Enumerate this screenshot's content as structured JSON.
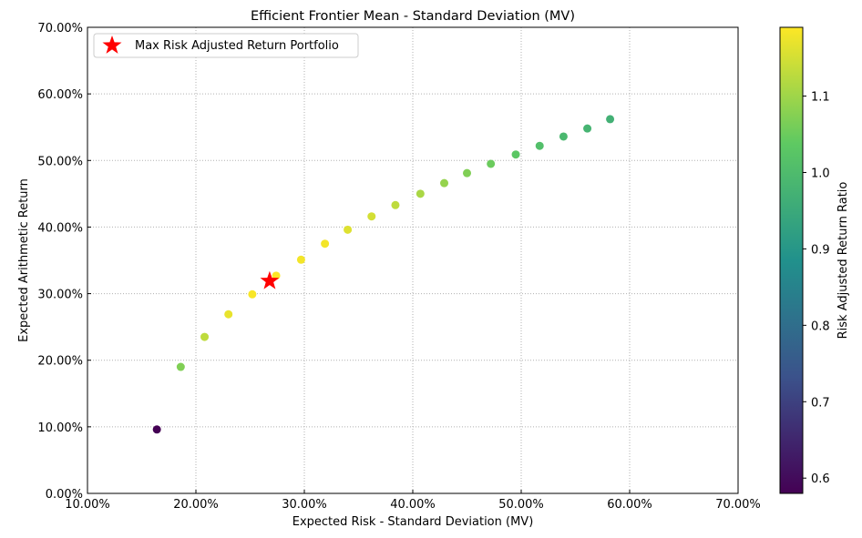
{
  "chart_data": {
    "type": "scatter",
    "title": "Efficient Frontier Mean - Standard Deviation (MV)",
    "xlabel": "Expected Risk - Standard Deviation (MV)",
    "ylabel": "Expected Arithmetic Return",
    "xlim": [
      10,
      70
    ],
    "ylim": [
      0,
      70
    ],
    "xticks": [
      "10.00%",
      "20.00%",
      "30.00%",
      "40.00%",
      "50.00%",
      "60.00%",
      "70.00%"
    ],
    "yticks": [
      "0.00%",
      "10.00%",
      "20.00%",
      "30.00%",
      "40.00%",
      "50.00%",
      "60.00%",
      "70.00%"
    ],
    "grid": true,
    "legend": {
      "placement": "top-left",
      "label": "Max Risk Adjusted Return Portfolio"
    },
    "points": [
      {
        "x": 16.4,
        "y": 9.6,
        "ratio": 0.58
      },
      {
        "x": 18.6,
        "y": 19.0,
        "ratio": 1.07
      },
      {
        "x": 20.8,
        "y": 23.5,
        "ratio": 1.13
      },
      {
        "x": 23.0,
        "y": 26.9,
        "ratio": 1.17
      },
      {
        "x": 25.2,
        "y": 29.9,
        "ratio": 1.185
      },
      {
        "x": 27.4,
        "y": 32.7,
        "ratio": 1.19
      },
      {
        "x": 29.7,
        "y": 35.1,
        "ratio": 1.18
      },
      {
        "x": 31.9,
        "y": 37.5,
        "ratio": 1.18
      },
      {
        "x": 34.0,
        "y": 39.6,
        "ratio": 1.16
      },
      {
        "x": 36.2,
        "y": 41.6,
        "ratio": 1.15
      },
      {
        "x": 38.4,
        "y": 43.3,
        "ratio": 1.13
      },
      {
        "x": 40.7,
        "y": 45.0,
        "ratio": 1.11
      },
      {
        "x": 42.9,
        "y": 46.6,
        "ratio": 1.09
      },
      {
        "x": 45.0,
        "y": 48.1,
        "ratio": 1.07
      },
      {
        "x": 47.2,
        "y": 49.5,
        "ratio": 1.05
      },
      {
        "x": 49.5,
        "y": 50.9,
        "ratio": 1.03
      },
      {
        "x": 51.7,
        "y": 52.2,
        "ratio": 1.01
      },
      {
        "x": 53.9,
        "y": 53.6,
        "ratio": 0.99
      },
      {
        "x": 56.1,
        "y": 54.8,
        "ratio": 0.98
      },
      {
        "x": 58.2,
        "y": 56.2,
        "ratio": 0.97
      }
    ],
    "max_point": {
      "x": 26.8,
      "y": 31.9,
      "color": "#ff0000"
    },
    "colorbar": {
      "label": "Risk Adjusted Return Ratio",
      "range": [
        0.58,
        1.19
      ],
      "ticks": [
        "0.6",
        "0.7",
        "0.8",
        "0.9",
        "1.0",
        "1.1"
      ]
    }
  }
}
